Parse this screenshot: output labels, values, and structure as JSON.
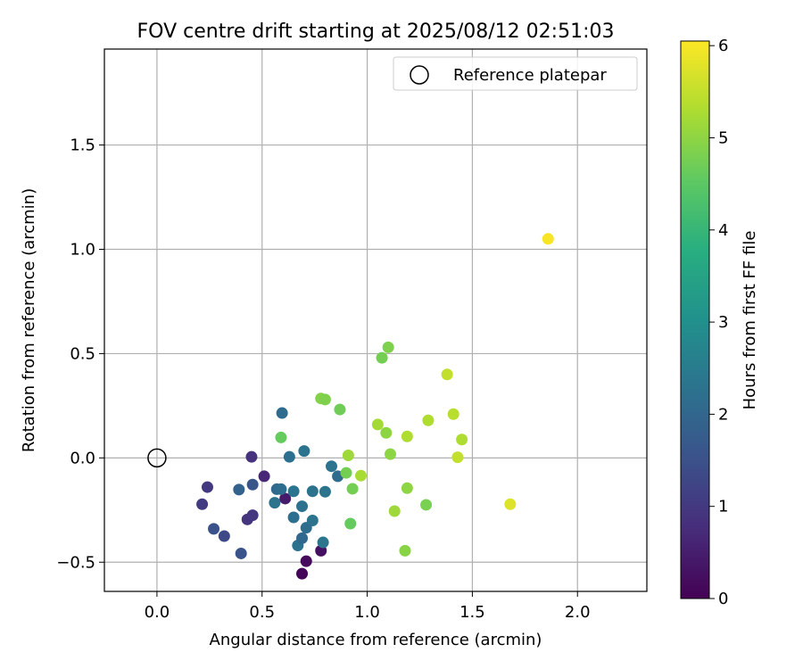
{
  "chart_data": {
    "type": "scatter",
    "title": "FOV centre drift starting at 2025/08/12 02:51:03",
    "xlabel": "Angular distance from reference (arcmin)",
    "ylabel": "Rotation from reference (arcmin)",
    "xlim": [
      -0.25,
      2.33
    ],
    "ylim": [
      -0.64,
      1.96
    ],
    "xticks": [
      0.0,
      0.5,
      1.0,
      1.5,
      2.0
    ],
    "xtick_labels": [
      "0.0",
      "0.5",
      "1.0",
      "1.5",
      "2.0"
    ],
    "yticks": [
      -0.5,
      0.0,
      0.5,
      1.0,
      1.5
    ],
    "ytick_labels": [
      "−0.5",
      "0.0",
      "0.5",
      "1.0",
      "1.5"
    ],
    "grid": true,
    "legend": {
      "placement": "top-right",
      "entries": [
        "Reference platepar"
      ]
    },
    "reference_point": {
      "x": 0.0,
      "y": 0.0,
      "marker": "open-circle"
    },
    "colorbar": {
      "label": "Hours from first FF file",
      "colormap": "viridis",
      "range": [
        0,
        6.05
      ],
      "ticks": [
        0,
        1,
        2,
        3,
        4,
        5,
        6
      ],
      "tick_labels": [
        "0",
        "1",
        "2",
        "3",
        "4",
        "5",
        "6"
      ]
    },
    "points": [
      {
        "x": 0.69,
        "y": -0.555,
        "hours": 0.05
      },
      {
        "x": 0.71,
        "y": -0.495,
        "hours": 0.15
      },
      {
        "x": 0.78,
        "y": -0.445,
        "hours": 0.25
      },
      {
        "x": 0.61,
        "y": -0.195,
        "hours": 0.45
      },
      {
        "x": 0.51,
        "y": -0.088,
        "hours": 0.65
      },
      {
        "x": 0.45,
        "y": 0.005,
        "hours": 0.85
      },
      {
        "x": 0.43,
        "y": -0.295,
        "hours": 0.9
      },
      {
        "x": 0.455,
        "y": -0.275,
        "hours": 0.95
      },
      {
        "x": 0.24,
        "y": -0.14,
        "hours": 1.0
      },
      {
        "x": 0.215,
        "y": -0.222,
        "hours": 1.05
      },
      {
        "x": 0.32,
        "y": -0.375,
        "hours": 1.3
      },
      {
        "x": 0.27,
        "y": -0.34,
        "hours": 1.5
      },
      {
        "x": 0.455,
        "y": -0.128,
        "hours": 1.6
      },
      {
        "x": 0.4,
        "y": -0.458,
        "hours": 1.55
      },
      {
        "x": 0.39,
        "y": -0.152,
        "hours": 1.9
      },
      {
        "x": 0.57,
        "y": -0.15,
        "hours": 2.05
      },
      {
        "x": 0.59,
        "y": -0.15,
        "hours": 2.15
      },
      {
        "x": 0.56,
        "y": -0.215,
        "hours": 2.3
      },
      {
        "x": 0.65,
        "y": -0.16,
        "hours": 2.35
      },
      {
        "x": 0.65,
        "y": -0.285,
        "hours": 2.2
      },
      {
        "x": 0.67,
        "y": -0.42,
        "hours": 2.25
      },
      {
        "x": 0.69,
        "y": -0.385,
        "hours": 2.05
      },
      {
        "x": 0.69,
        "y": -0.232,
        "hours": 2.25
      },
      {
        "x": 0.71,
        "y": -0.335,
        "hours": 2.15
      },
      {
        "x": 0.74,
        "y": -0.3,
        "hours": 2.3
      },
      {
        "x": 0.79,
        "y": -0.405,
        "hours": 2.35
      },
      {
        "x": 0.74,
        "y": -0.16,
        "hours": 2.3
      },
      {
        "x": 0.8,
        "y": -0.162,
        "hours": 2.3
      },
      {
        "x": 0.86,
        "y": -0.088,
        "hours": 2.1
      },
      {
        "x": 0.83,
        "y": -0.04,
        "hours": 2.3
      },
      {
        "x": 0.63,
        "y": 0.005,
        "hours": 2.2
      },
      {
        "x": 0.7,
        "y": 0.033,
        "hours": 2.3
      },
      {
        "x": 0.595,
        "y": 0.215,
        "hours": 2.1
      },
      {
        "x": 0.59,
        "y": 0.098,
        "hours": 4.6
      },
      {
        "x": 0.78,
        "y": 0.285,
        "hours": 4.9
      },
      {
        "x": 0.8,
        "y": 0.28,
        "hours": 4.85
      },
      {
        "x": 0.87,
        "y": 0.232,
        "hours": 4.7
      },
      {
        "x": 0.9,
        "y": -0.072,
        "hours": 4.75
      },
      {
        "x": 0.92,
        "y": -0.315,
        "hours": 4.6
      },
      {
        "x": 0.93,
        "y": -0.148,
        "hours": 4.75
      },
      {
        "x": 0.91,
        "y": 0.012,
        "hours": 5.15
      },
      {
        "x": 0.97,
        "y": -0.085,
        "hours": 5.25
      },
      {
        "x": 1.07,
        "y": 0.48,
        "hours": 4.75
      },
      {
        "x": 1.1,
        "y": 0.53,
        "hours": 4.85
      },
      {
        "x": 1.05,
        "y": 0.16,
        "hours": 5.2
      },
      {
        "x": 1.09,
        "y": 0.12,
        "hours": 5.0
      },
      {
        "x": 1.11,
        "y": 0.018,
        "hours": 5.0
      },
      {
        "x": 1.19,
        "y": -0.145,
        "hours": 5.0
      },
      {
        "x": 1.13,
        "y": -0.255,
        "hours": 5.15
      },
      {
        "x": 1.18,
        "y": -0.445,
        "hours": 4.95
      },
      {
        "x": 1.19,
        "y": 0.103,
        "hours": 5.3
      },
      {
        "x": 1.28,
        "y": -0.225,
        "hours": 4.8
      },
      {
        "x": 1.29,
        "y": 0.18,
        "hours": 5.3
      },
      {
        "x": 1.38,
        "y": 0.4,
        "hours": 5.5
      },
      {
        "x": 1.41,
        "y": 0.21,
        "hours": 5.4
      },
      {
        "x": 1.43,
        "y": 0.003,
        "hours": 5.5
      },
      {
        "x": 1.45,
        "y": 0.088,
        "hours": 5.3
      },
      {
        "x": 1.68,
        "y": -0.222,
        "hours": 5.75
      },
      {
        "x": 1.86,
        "y": 1.05,
        "hours": 6.0
      }
    ]
  }
}
